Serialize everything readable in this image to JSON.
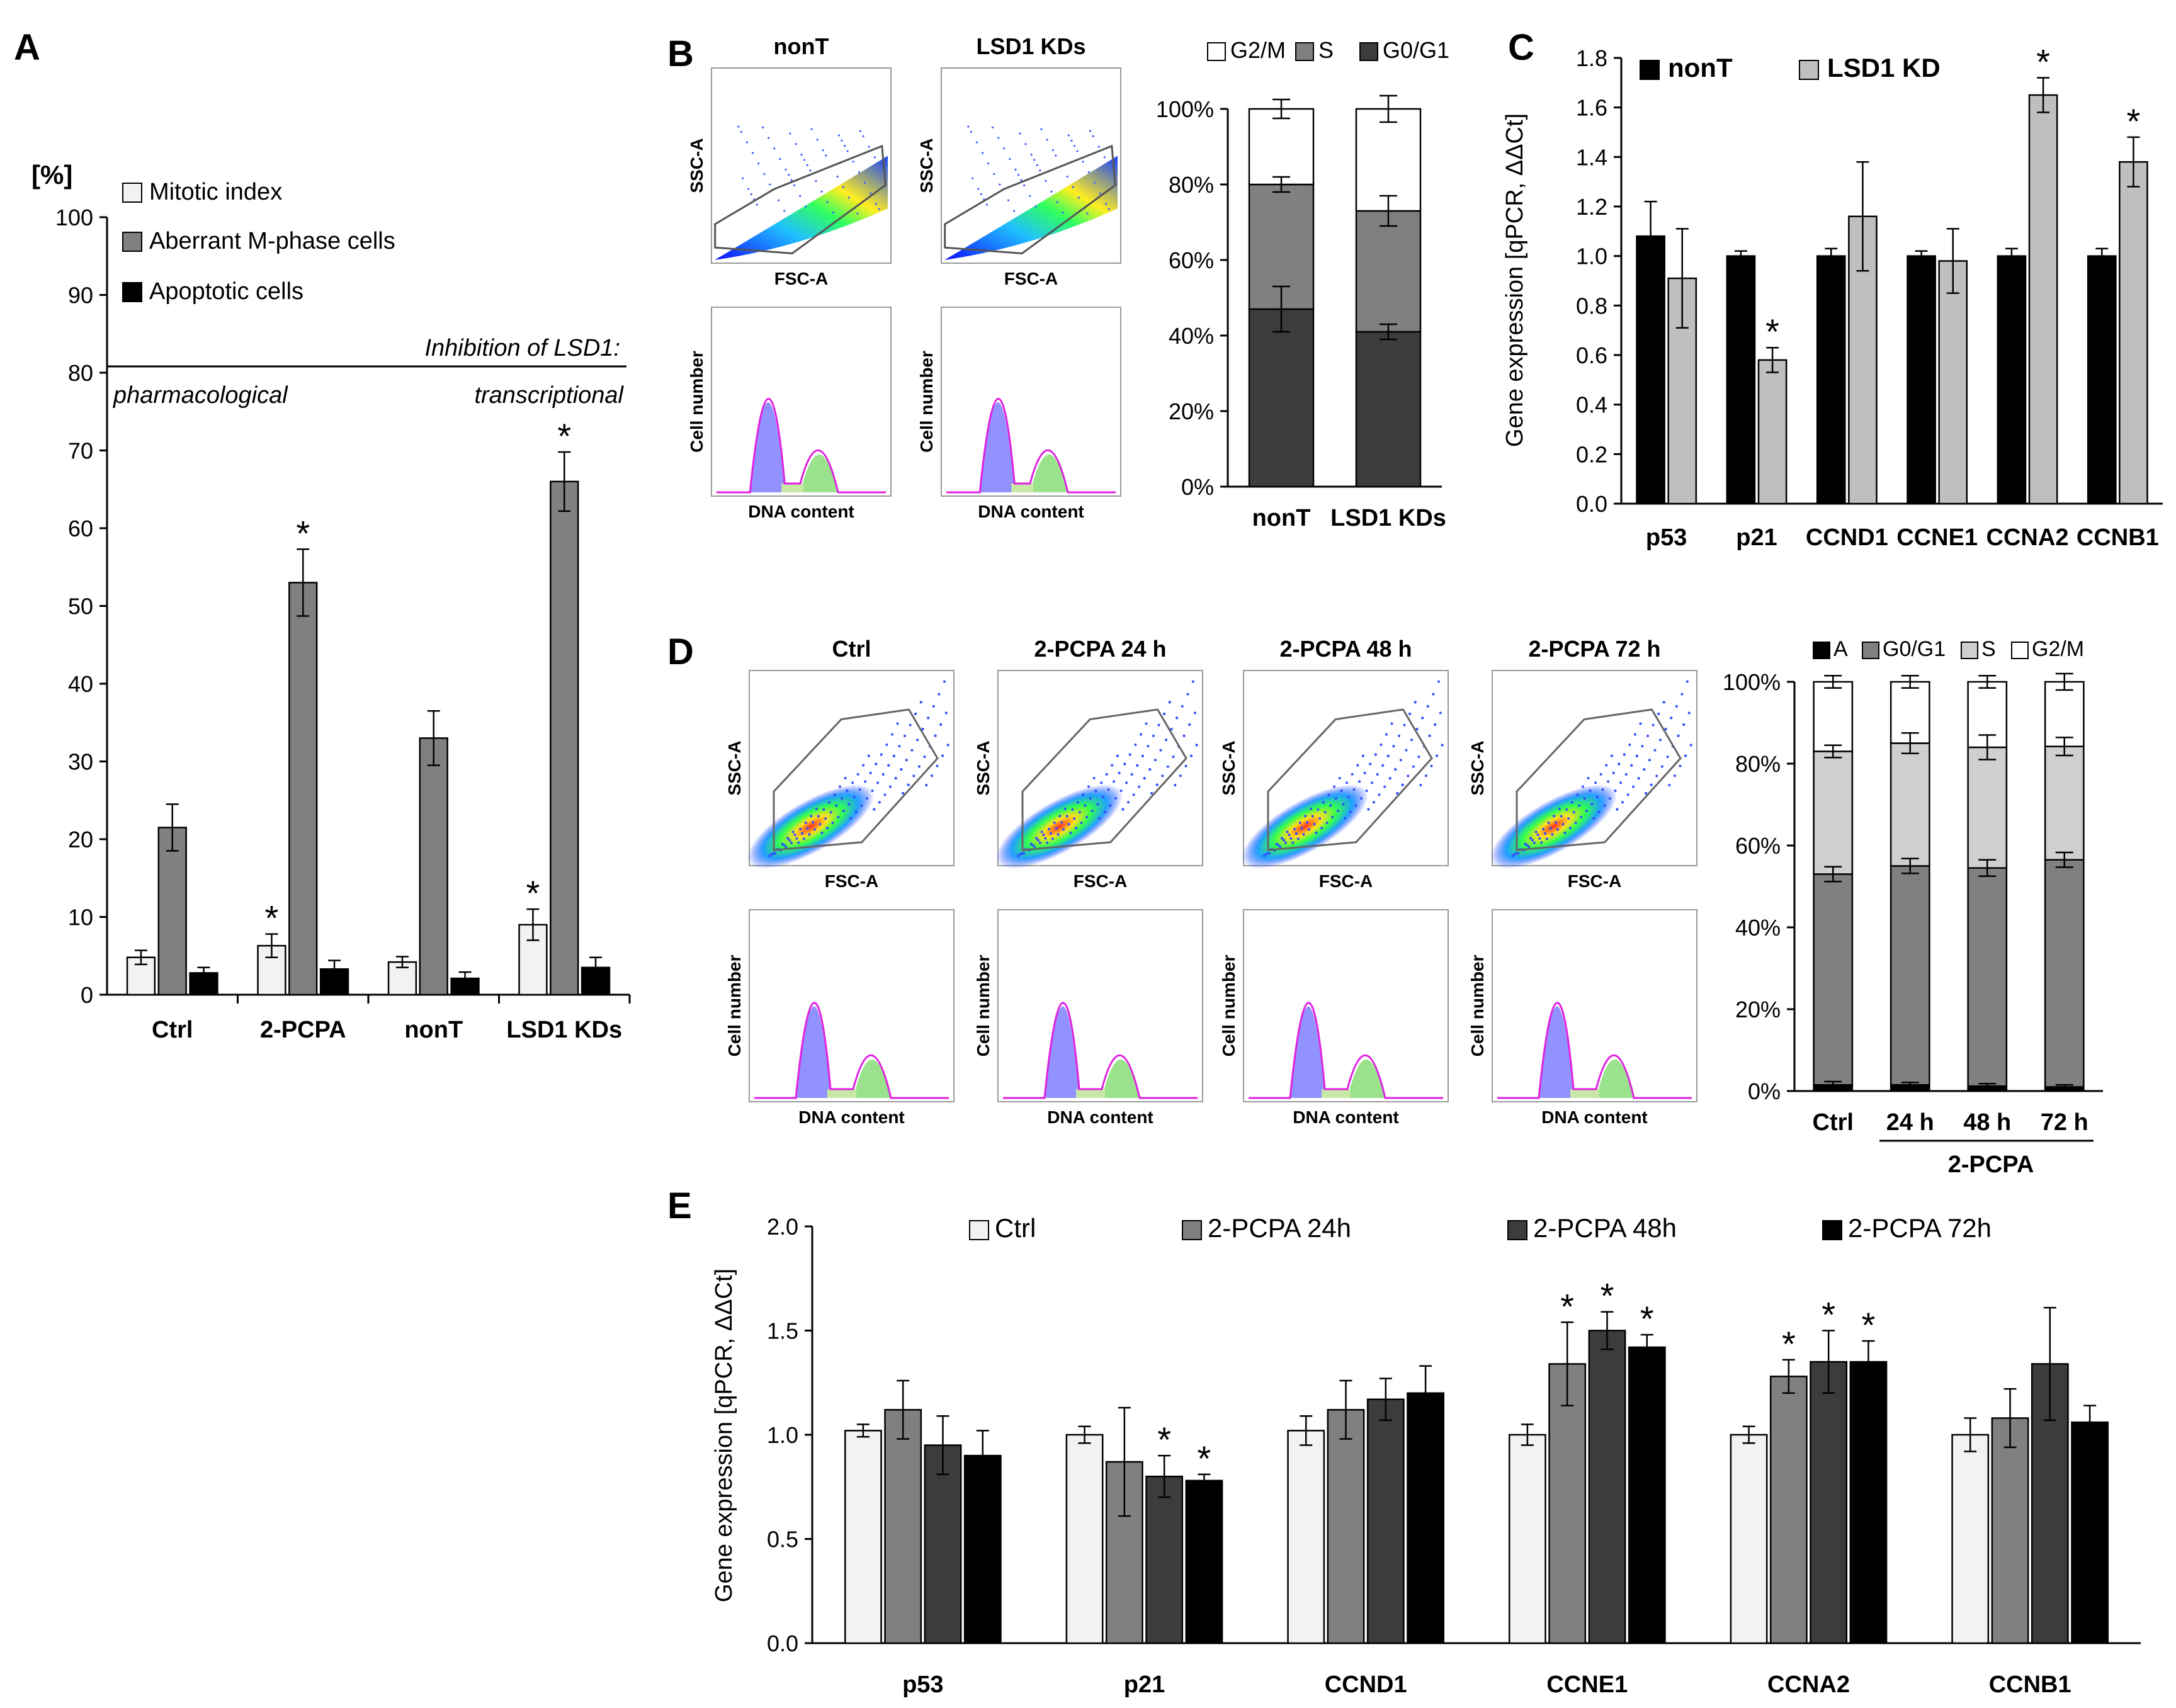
{
  "colors": {
    "white": "#ffffff",
    "lightgray": "#d4d4d4",
    "verylight": "#f2f2f2",
    "gray": "#808080",
    "darkgray": "#3c3c3c",
    "black": "#000000"
  },
  "panel_labels": {
    "A": "A",
    "B": "B",
    "C": "C",
    "D": "D",
    "E": "E"
  },
  "flow_text": {
    "ssc": "SSC-A",
    "fsc": "FSC-A",
    "cell_number": "Cell number",
    "dna": "DNA content",
    "b_titles": [
      "nonT",
      "LSD1 KDs"
    ],
    "d_titles": [
      "Ctrl",
      "2-PCPA 24 h",
      "2-PCPA 48 h",
      "2-PCPA 72 h"
    ]
  },
  "chart_data": [
    {
      "id": "A",
      "type": "bar",
      "ylabel": "[%]",
      "ylim": [
        0,
        100
      ],
      "yticks": [
        0,
        10,
        20,
        30,
        40,
        50,
        60,
        70,
        80,
        90,
        100
      ],
      "categories": [
        "Ctrl",
        "2-PCPA",
        "nonT",
        "LSD1 KDs"
      ],
      "series": [
        {
          "name": "Mitotic index",
          "color": "#f2f2f2",
          "values": [
            4.8,
            6.3,
            4.2,
            9.0
          ],
          "err": [
            0.9,
            1.5,
            0.7,
            2.0
          ],
          "sig": [
            false,
            true,
            false,
            true
          ]
        },
        {
          "name": "Aberrant M-phase cells",
          "color": "#808080",
          "values": [
            21.5,
            53.0,
            33.0,
            66.0
          ],
          "err": [
            3.0,
            4.3,
            3.5,
            3.8
          ],
          "sig": [
            false,
            true,
            false,
            true
          ]
        },
        {
          "name": "Apoptotic cells",
          "color": "#000000",
          "values": [
            2.8,
            3.3,
            2.1,
            3.5
          ],
          "err": [
            0.7,
            1.1,
            0.8,
            1.3
          ],
          "sig": [
            false,
            false,
            false,
            false
          ]
        }
      ],
      "annotations": {
        "header": "Inhibition of LSD1:",
        "left": "pharmacological",
        "right": "transcriptional"
      },
      "star": "*"
    },
    {
      "id": "B",
      "type": "bar",
      "stacked": true,
      "ylim": [
        0,
        100
      ],
      "yticks": [
        "0%",
        "20%",
        "40%",
        "60%",
        "80%",
        "100%"
      ],
      "categories": [
        "nonT",
        "LSD1 KDs"
      ],
      "series": [
        {
          "name": "G0/G1",
          "color": "#3c3c3c",
          "values": [
            47,
            41
          ],
          "err": [
            6,
            2
          ]
        },
        {
          "name": "S",
          "color": "#808080",
          "values": [
            33,
            32
          ],
          "err": [
            2,
            4
          ]
        },
        {
          "name": "G2/M",
          "color": "#ffffff",
          "values": [
            20,
            27
          ],
          "err": [
            2.5,
            3.5
          ]
        }
      ],
      "legend_order": [
        "G2/M",
        "S",
        "G0/G1"
      ]
    },
    {
      "id": "C",
      "type": "bar",
      "ylabel": "Gene expression [qPCR, ΔΔCt]",
      "ylim": [
        0,
        1.8
      ],
      "yticks": [
        "0.0",
        "0.2",
        "0.4",
        "0.6",
        "0.8",
        "1.0",
        "1.2",
        "1.4",
        "1.6",
        "1.8"
      ],
      "categories": [
        "p53",
        "p21",
        "CCND1",
        "CCNE1",
        "CCNA2",
        "CCNB1"
      ],
      "series": [
        {
          "name": "nonT",
          "color": "#000000",
          "values": [
            1.08,
            1.0,
            1.0,
            1.0,
            1.0,
            1.0
          ],
          "err": [
            0.14,
            0.02,
            0.03,
            0.02,
            0.03,
            0.03
          ],
          "sig": [
            false,
            false,
            false,
            false,
            false,
            false
          ]
        },
        {
          "name": "LSD1 KD",
          "color": "#bfbfbf",
          "values": [
            0.91,
            0.58,
            1.16,
            0.98,
            1.65,
            1.38
          ],
          "err": [
            0.2,
            0.05,
            0.22,
            0.13,
            0.07,
            0.1
          ],
          "sig": [
            false,
            true,
            false,
            false,
            true,
            true
          ]
        }
      ],
      "star": "*"
    },
    {
      "id": "D",
      "type": "bar",
      "stacked": true,
      "ylim": [
        0,
        100
      ],
      "yticks": [
        "0%",
        "20%",
        "40%",
        "60%",
        "80%",
        "100%"
      ],
      "categories": [
        "Ctrl",
        "24 h",
        "48 h",
        "72 h"
      ],
      "group_label": "2-PCPA",
      "series": [
        {
          "name": "A",
          "color": "#000000",
          "values": [
            1.5,
            1.5,
            1.2,
            1.0
          ],
          "err": [
            0.8,
            0.6,
            0.6,
            0.5
          ]
        },
        {
          "name": "G0/G1",
          "color": "#808080",
          "values": [
            51.5,
            53.5,
            53.3,
            55.5
          ],
          "err": [
            1.8,
            1.8,
            2.0,
            1.8
          ]
        },
        {
          "name": "S",
          "color": "#cfcfcf",
          "values": [
            30,
            30,
            29.5,
            27.7
          ],
          "err": [
            1.5,
            2.5,
            3.0,
            2.2
          ]
        },
        {
          "name": "G2/M",
          "color": "#ffffff",
          "values": [
            17,
            15,
            16,
            15.8
          ],
          "err": [
            1.5,
            1.5,
            1.5,
            2.0
          ]
        }
      ]
    },
    {
      "id": "E",
      "type": "bar",
      "ylabel": "Gene expression [qPCR, ΔΔCt]",
      "ylim": [
        0,
        2.0
      ],
      "yticks": [
        "0.0",
        "0.5",
        "1.0",
        "1.5",
        "2.0"
      ],
      "categories": [
        "p53",
        "p21",
        "CCND1",
        "CCNE1",
        "CCNA2",
        "CCNB1"
      ],
      "series": [
        {
          "name": "Ctrl",
          "color": "#f2f2f2",
          "values": [
            1.02,
            1.0,
            1.02,
            1.0,
            1.0,
            1.0
          ],
          "err": [
            0.03,
            0.04,
            0.07,
            0.05,
            0.04,
            0.08
          ],
          "sig": [
            false,
            false,
            false,
            false,
            false,
            false
          ]
        },
        {
          "name": "2-PCPA 24h",
          "color": "#808080",
          "values": [
            1.12,
            0.87,
            1.12,
            1.34,
            1.28,
            1.08
          ],
          "err": [
            0.14,
            0.26,
            0.14,
            0.2,
            0.08,
            0.14
          ],
          "sig": [
            false,
            false,
            false,
            true,
            true,
            false
          ]
        },
        {
          "name": "2-PCPA 48h",
          "color": "#3c3c3c",
          "values": [
            0.95,
            0.8,
            1.17,
            1.5,
            1.35,
            1.34
          ],
          "err": [
            0.14,
            0.1,
            0.1,
            0.09,
            0.15,
            0.27
          ],
          "sig": [
            false,
            true,
            false,
            true,
            true,
            false
          ]
        },
        {
          "name": "2-PCPA 72h",
          "color": "#000000",
          "values": [
            0.9,
            0.78,
            1.2,
            1.42,
            1.35,
            1.06
          ],
          "err": [
            0.12,
            0.03,
            0.13,
            0.06,
            0.1,
            0.08
          ],
          "sig": [
            false,
            true,
            false,
            true,
            true,
            false
          ]
        }
      ],
      "star": "*"
    }
  ]
}
